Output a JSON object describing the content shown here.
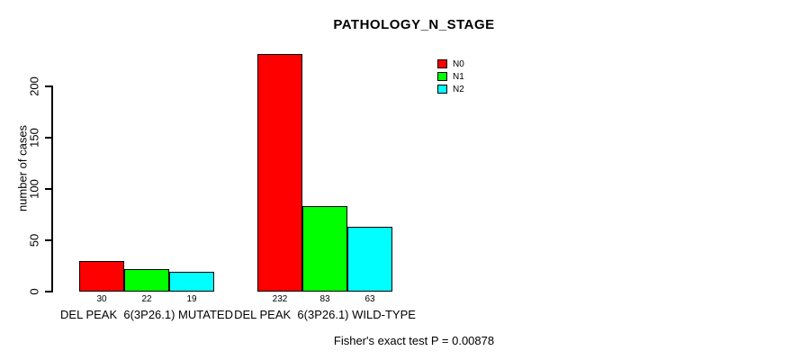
{
  "chart_data": {
    "type": "bar",
    "grouped": true,
    "title": "PATHOLOGY_N_STAGE",
    "xlabel": "",
    "ylabel": "number of cases",
    "categories": [
      "DEL PEAK  6(3P26.1) MUTATED",
      "DEL PEAK  6(3P26.1) WILD-TYPE"
    ],
    "series": [
      {
        "name": "N0",
        "color": "#ff0000",
        "values": [
          30,
          232
        ]
      },
      {
        "name": "N1",
        "color": "#00ff00",
        "values": [
          22,
          83
        ]
      },
      {
        "name": "N2",
        "color": "#00ffff",
        "values": [
          19,
          63
        ]
      }
    ],
    "bar_value_labels": [
      [
        30,
        22,
        19
      ],
      [
        232,
        83,
        63
      ]
    ],
    "yticks": [
      0,
      50,
      100,
      150,
      200
    ],
    "axis_range": [
      0,
      200
    ],
    "ylim": [
      0,
      232
    ],
    "grid": false,
    "legend_position": "top-right-inside",
    "annotation": "Fisher's exact test P = 0.00878",
    "colors": {
      "n0": "#ff0000",
      "n1": "#00ff00",
      "n2": "#00ffff",
      "axis": "#000000",
      "background": "#ffffff"
    }
  }
}
